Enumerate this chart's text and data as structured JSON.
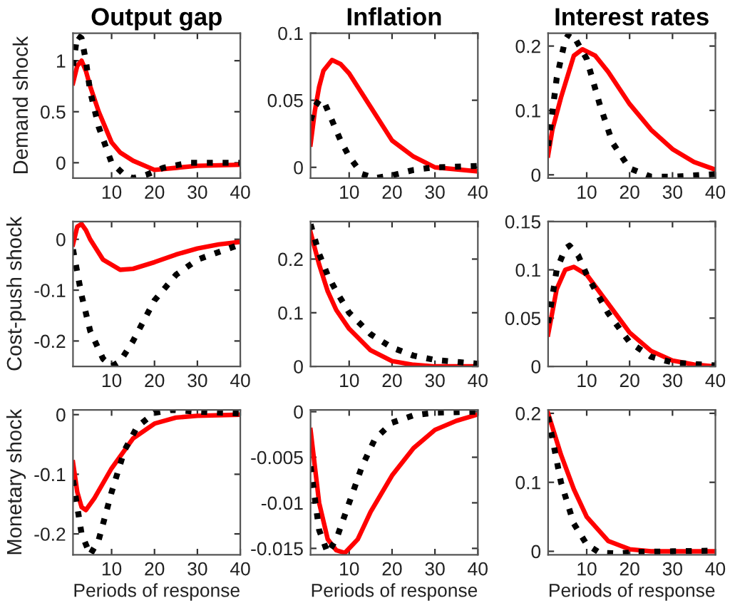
{
  "chart_data": [
    {
      "type": "line",
      "title": "Output gap",
      "ylabel": "Demand shock",
      "xlim": [
        1,
        40
      ],
      "xticks": [
        10,
        20,
        30,
        40
      ],
      "ylim": [
        -0.15,
        1.27
      ],
      "yticks": [
        0,
        0.5,
        1
      ],
      "grid": false,
      "legend": false,
      "series": [
        {
          "color": "#ff0000",
          "line_style": "solid",
          "x": [
            1,
            2,
            3,
            4,
            5,
            7,
            10,
            12,
            15,
            20,
            25,
            30,
            40
          ],
          "values": [
            0.78,
            0.95,
            1.0,
            0.9,
            0.75,
            0.5,
            0.2,
            0.1,
            0.02,
            -0.07,
            -0.05,
            -0.03,
            -0.02
          ]
        },
        {
          "color": "#000000",
          "line_style": "dotted",
          "x": [
            1,
            2,
            3,
            4,
            5,
            7,
            10,
            13,
            15,
            18,
            22,
            28,
            40
          ],
          "values": [
            0.95,
            1.25,
            1.22,
            1.0,
            0.7,
            0.35,
            0.0,
            -0.12,
            -0.15,
            -0.12,
            -0.05,
            0.0,
            0.0
          ]
        }
      ]
    },
    {
      "type": "line",
      "title": "Inflation",
      "xlim": [
        1,
        40
      ],
      "xticks": [
        10,
        20,
        30,
        40
      ],
      "ylim": [
        -0.008,
        0.1
      ],
      "yticks": [
        0,
        0.05,
        0.1
      ],
      "grid": false,
      "legend": false,
      "series": [
        {
          "color": "#ff0000",
          "line_style": "solid",
          "x": [
            1,
            2,
            3,
            4,
            6,
            8,
            10,
            15,
            20,
            25,
            30,
            40
          ],
          "values": [
            0.017,
            0.042,
            0.06,
            0.072,
            0.08,
            0.077,
            0.07,
            0.045,
            0.02,
            0.008,
            0.0,
            -0.003
          ]
        },
        {
          "color": "#000000",
          "line_style": "dotted",
          "x": [
            1,
            2,
            3,
            4,
            6,
            8,
            10,
            13,
            16,
            20,
            25,
            30,
            40
          ],
          "values": [
            0.035,
            0.045,
            0.05,
            0.05,
            0.035,
            0.02,
            0.008,
            -0.005,
            -0.008,
            -0.006,
            -0.002,
            0.0,
            0.001
          ]
        }
      ]
    },
    {
      "type": "line",
      "title": "Interest rates",
      "xlim": [
        1,
        40
      ],
      "xticks": [
        10,
        20,
        30,
        40
      ],
      "ylim": [
        -0.005,
        0.22
      ],
      "yticks": [
        0,
        0.1,
        0.2
      ],
      "grid": false,
      "legend": false,
      "series": [
        {
          "color": "#ff0000",
          "line_style": "solid",
          "x": [
            1,
            2,
            4,
            7,
            9,
            12,
            15,
            20,
            25,
            30,
            35,
            40
          ],
          "values": [
            0.03,
            0.07,
            0.12,
            0.185,
            0.195,
            0.185,
            0.16,
            0.11,
            0.07,
            0.04,
            0.02,
            0.008
          ]
        },
        {
          "color": "#000000",
          "line_style": "dotted",
          "x": [
            1,
            3,
            5,
            6,
            7,
            10,
            13,
            16,
            20,
            25,
            30,
            40
          ],
          "values": [
            0.045,
            0.15,
            0.21,
            0.22,
            0.215,
            0.18,
            0.11,
            0.05,
            0.01,
            -0.003,
            -0.003,
            0.001
          ]
        }
      ]
    },
    {
      "type": "line",
      "ylabel": "Cost-push shock",
      "xlim": [
        1,
        40
      ],
      "xticks": [
        10,
        20,
        30,
        40
      ],
      "ylim": [
        -0.25,
        0.035
      ],
      "yticks": [
        -0.2,
        -0.1,
        0
      ],
      "grid": false,
      "legend": false,
      "series": [
        {
          "color": "#ff0000",
          "line_style": "solid",
          "x": [
            1,
            2,
            3,
            4,
            5,
            8,
            12,
            15,
            20,
            25,
            30,
            35,
            40
          ],
          "values": [
            -0.01,
            0.025,
            0.03,
            0.018,
            0.0,
            -0.04,
            -0.06,
            -0.058,
            -0.045,
            -0.03,
            -0.018,
            -0.01,
            -0.005
          ]
        },
        {
          "color": "#000000",
          "line_style": "dotted",
          "x": [
            1,
            3,
            5,
            8,
            10,
            12,
            15,
            20,
            25,
            30,
            35,
            40
          ],
          "values": [
            -0.02,
            -0.11,
            -0.18,
            -0.235,
            -0.25,
            -0.24,
            -0.2,
            -0.12,
            -0.07,
            -0.04,
            -0.025,
            -0.01
          ]
        }
      ]
    },
    {
      "type": "line",
      "xlim": [
        1,
        40
      ],
      "xticks": [
        10,
        20,
        30,
        40
      ],
      "ylim": [
        0,
        0.27
      ],
      "yticks": [
        0,
        0.1,
        0.2
      ],
      "grid": false,
      "legend": false,
      "series": [
        {
          "color": "#ff0000",
          "line_style": "solid",
          "x": [
            1,
            3,
            5,
            7,
            10,
            15,
            20,
            25,
            30,
            40
          ],
          "values": [
            0.25,
            0.19,
            0.14,
            0.105,
            0.07,
            0.03,
            0.01,
            0.003,
            0.0,
            0.0
          ]
        },
        {
          "color": "#000000",
          "line_style": "dotted",
          "x": [
            1,
            3,
            5,
            7,
            10,
            15,
            20,
            25,
            30,
            40
          ],
          "values": [
            0.265,
            0.21,
            0.17,
            0.14,
            0.1,
            0.06,
            0.035,
            0.02,
            0.012,
            0.005
          ]
        }
      ]
    },
    {
      "type": "line",
      "xlim": [
        1,
        40
      ],
      "xticks": [
        10,
        20,
        30,
        40
      ],
      "ylim": [
        0,
        0.15
      ],
      "yticks": [
        0,
        0.05,
        0.1,
        0.15
      ],
      "grid": false,
      "legend": false,
      "series": [
        {
          "color": "#ff0000",
          "line_style": "solid",
          "x": [
            1,
            3,
            5,
            7,
            10,
            15,
            20,
            25,
            30,
            35,
            40
          ],
          "values": [
            0.033,
            0.08,
            0.1,
            0.103,
            0.095,
            0.065,
            0.035,
            0.016,
            0.006,
            0.002,
            0.0
          ]
        },
        {
          "color": "#000000",
          "line_style": "dotted",
          "x": [
            1,
            3,
            5,
            6,
            8,
            10,
            15,
            20,
            25,
            30,
            40
          ],
          "values": [
            0.045,
            0.1,
            0.122,
            0.125,
            0.115,
            0.095,
            0.055,
            0.025,
            0.01,
            0.004,
            0.001
          ]
        }
      ]
    },
    {
      "type": "line",
      "ylabel": "Monetary shock",
      "xlabel": "Periods of response",
      "xlim": [
        1,
        40
      ],
      "xticks": [
        10,
        20,
        30,
        40
      ],
      "ylim": [
        -0.235,
        0.008
      ],
      "yticks": [
        -0.2,
        -0.1,
        0
      ],
      "grid": false,
      "legend": false,
      "series": [
        {
          "color": "#ff0000",
          "line_style": "solid",
          "x": [
            1,
            2,
            3,
            4,
            6,
            10,
            15,
            20,
            25,
            30,
            40
          ],
          "values": [
            -0.08,
            -0.13,
            -0.155,
            -0.16,
            -0.14,
            -0.09,
            -0.04,
            -0.015,
            -0.005,
            -0.002,
            0.0
          ]
        },
        {
          "color": "#000000",
          "line_style": "dotted",
          "x": [
            1,
            3,
            5,
            7,
            10,
            13,
            16,
            20,
            24,
            30,
            40
          ],
          "values": [
            -0.11,
            -0.2,
            -0.235,
            -0.21,
            -0.13,
            -0.06,
            -0.02,
            0.003,
            0.008,
            0.005,
            0.002
          ]
        }
      ]
    },
    {
      "type": "line",
      "xlabel": "Periods of response",
      "xlim": [
        1,
        40
      ],
      "xticks": [
        10,
        20,
        30,
        40
      ],
      "ylim": [
        -0.0157,
        0.0002
      ],
      "yticks": [
        -0.015,
        -0.01,
        -0.005,
        0
      ],
      "grid": false,
      "legend": false,
      "series": [
        {
          "color": "#ff0000",
          "line_style": "solid",
          "x": [
            1,
            3,
            5,
            7,
            9,
            12,
            15,
            20,
            25,
            30,
            35,
            40
          ],
          "values": [
            -0.002,
            -0.01,
            -0.014,
            -0.0152,
            -0.0155,
            -0.014,
            -0.011,
            -0.007,
            -0.004,
            -0.002,
            -0.001,
            -0.0003
          ]
        },
        {
          "color": "#000000",
          "line_style": "dotted",
          "x": [
            1,
            3,
            5,
            7,
            10,
            13,
            16,
            20,
            25,
            30,
            40
          ],
          "values": [
            -0.006,
            -0.013,
            -0.0155,
            -0.014,
            -0.01,
            -0.006,
            -0.003,
            -0.0012,
            -0.0004,
            -0.0001,
            0.0
          ]
        }
      ]
    },
    {
      "type": "line",
      "xlabel": "Periods of response",
      "xlim": [
        1,
        40
      ],
      "xticks": [
        10,
        20,
        30,
        40
      ],
      "ylim": [
        -0.005,
        0.205
      ],
      "yticks": [
        0,
        0.1,
        0.2
      ],
      "grid": false,
      "legend": false,
      "series": [
        {
          "color": "#ff0000",
          "line_style": "solid",
          "x": [
            1,
            4,
            7,
            10,
            15,
            20,
            25,
            40
          ],
          "values": [
            0.2,
            0.14,
            0.09,
            0.05,
            0.015,
            0.003,
            0.0,
            0.0
          ]
        },
        {
          "color": "#000000",
          "line_style": "dotted",
          "x": [
            1,
            4,
            7,
            10,
            13,
            17,
            22,
            30,
            40
          ],
          "values": [
            0.195,
            0.1,
            0.04,
            0.01,
            -0.002,
            -0.003,
            -0.001,
            0.0,
            0.001
          ]
        }
      ]
    }
  ]
}
